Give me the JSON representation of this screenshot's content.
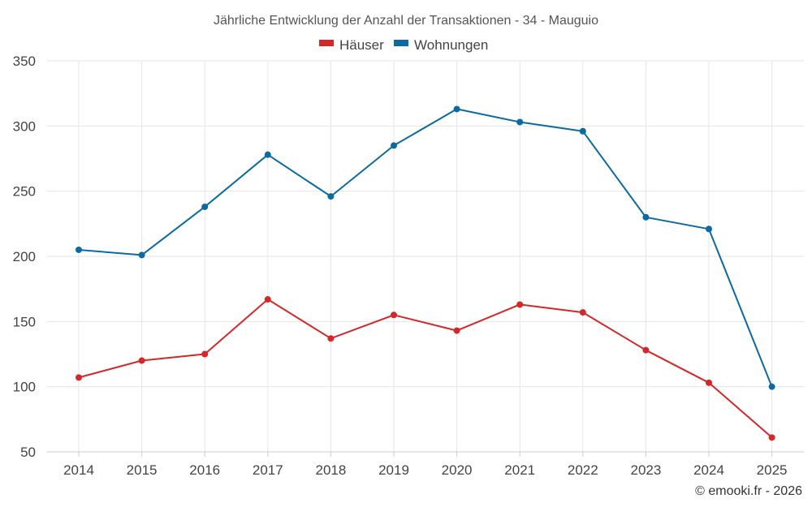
{
  "chart_data": {
    "type": "line",
    "title": "Jährliche Entwicklung der Anzahl der Transaktionen - 34 - Mauguio",
    "categories": [
      "2014",
      "2015",
      "2016",
      "2017",
      "2018",
      "2019",
      "2020",
      "2021",
      "2022",
      "2023",
      "2024",
      "2025"
    ],
    "series": [
      {
        "name": "Häuser",
        "color": "#d62728",
        "values": [
          107,
          120,
          125,
          167,
          137,
          155,
          143,
          163,
          157,
          128,
          103,
          61
        ]
      },
      {
        "name": "Wohnungen",
        "color": "#0a6aa1",
        "values": [
          205,
          201,
          238,
          278,
          246,
          285,
          313,
          303,
          296,
          230,
          221,
          100
        ]
      }
    ],
    "ylim": [
      50,
      350
    ],
    "yticks": [
      "50",
      "100",
      "150",
      "200",
      "250",
      "300",
      "350"
    ],
    "xlabel": "",
    "ylabel": "",
    "grid": true,
    "legend": "top-center"
  },
  "credit": "© emooki.fr - 2026"
}
